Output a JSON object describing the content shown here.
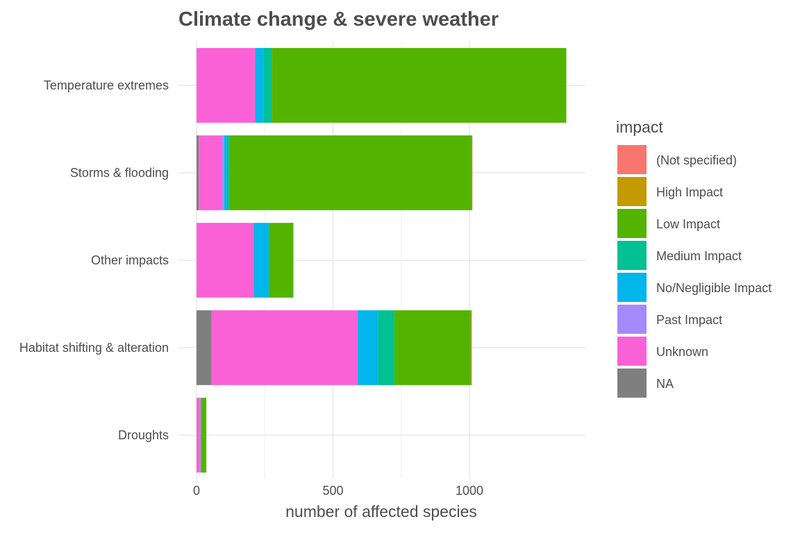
{
  "chart_data": {
    "type": "bar",
    "orientation": "horizontal",
    "stacked": true,
    "title": "Climate change & severe weather",
    "xlabel": "number of affected species",
    "ylabel": "",
    "xlim": [
      0,
      1420
    ],
    "x_ticks": [
      0,
      500,
      1000
    ],
    "grid": true,
    "legend_title": "impact",
    "legend_position": "right",
    "categories": [
      "Temperature extremes",
      "Storms & flooding",
      "Other impacts",
      "Habitat shifting & alteration",
      "Droughts"
    ],
    "series": [
      {
        "name": "NA",
        "color": "#7f7f7f",
        "values": [
          0,
          8,
          0,
          55,
          0
        ]
      },
      {
        "name": "Unknown",
        "color": "#fb61d7",
        "values": [
          215,
          85,
          210,
          535,
          12
        ]
      },
      {
        "name": "Past Impact",
        "color": "#a58aff",
        "values": [
          0,
          8,
          0,
          0,
          4
        ]
      },
      {
        "name": "No/Negligible Impact",
        "color": "#00b6eb",
        "values": [
          30,
          10,
          55,
          75,
          0
        ]
      },
      {
        "name": "Medium Impact",
        "color": "#00c094",
        "values": [
          30,
          8,
          0,
          60,
          0
        ]
      },
      {
        "name": "Low Impact",
        "color": "#53b400",
        "values": [
          1080,
          890,
          90,
          280,
          20
        ]
      },
      {
        "name": "High Impact",
        "color": "#c49a00",
        "values": [
          0,
          0,
          0,
          0,
          0
        ]
      },
      {
        "name": "(Not specified)",
        "color": "#f8766d",
        "values": [
          0,
          2,
          0,
          4,
          0
        ]
      }
    ],
    "legend_order": [
      "(Not specified)",
      "High Impact",
      "Low Impact",
      "Medium Impact",
      "No/Negligible Impact",
      "Past Impact",
      "Unknown",
      "NA"
    ]
  }
}
